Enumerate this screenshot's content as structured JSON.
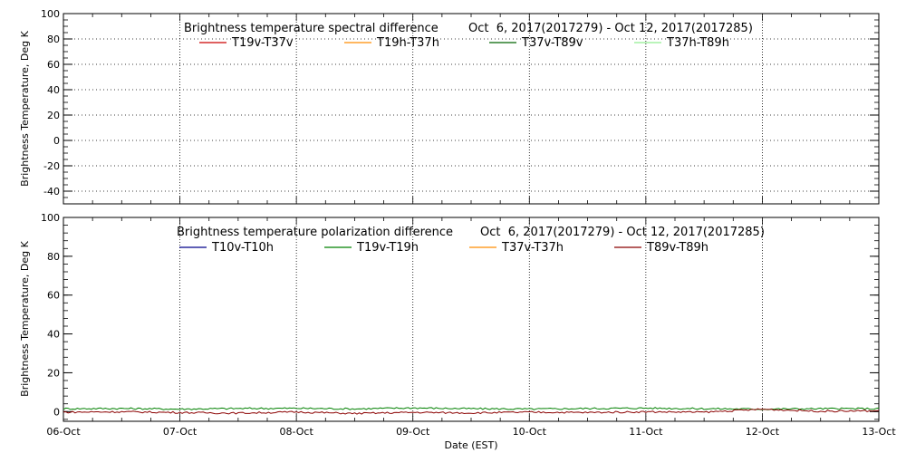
{
  "chart_data": [
    {
      "type": "line",
      "title": "Brightness temperature spectral difference",
      "date_range": "Oct  6, 2017(2017279) - Oct 12, 2017(2017285)",
      "ylabel": "Brightness Temperature, Deg K",
      "ylim": [
        -50,
        100
      ],
      "yticks": [
        -40,
        -20,
        0,
        20,
        40,
        60,
        80,
        100
      ],
      "xlim": [
        "2017-10-06",
        "2017-10-13"
      ],
      "grid": "dotted vertical at day boundaries and 06:00, dotted horizontal at y ticks",
      "legend_placement": "top",
      "series": [
        {
          "name": "T19v-T37v",
          "color": "#cc0000",
          "values": []
        },
        {
          "name": "T19h-T37h",
          "color": "#ff8c00",
          "values": []
        },
        {
          "name": "T37v-T89v",
          "color": "#006400",
          "values": []
        },
        {
          "name": "T37h-T89h",
          "color": "#90ee90",
          "values": []
        }
      ]
    },
    {
      "type": "line",
      "title": "Brightness temperature polarization difference",
      "date_range": "Oct  6, 2017(2017279) - Oct 12, 2017(2017285)",
      "ylabel": "Brightness Temperature, Deg K",
      "xlabel": "Date (EST)",
      "ylim": [
        -5,
        100
      ],
      "yticks": [
        0,
        20,
        40,
        60,
        80,
        100
      ],
      "xlim": [
        "2017-10-06",
        "2017-10-13"
      ],
      "xticks": [
        "06-Oct",
        "07-Oct",
        "08-Oct",
        "09-Oct",
        "10-Oct",
        "11-Oct",
        "12-Oct",
        "13-Oct"
      ],
      "grid": "dotted vertical at day boundaries",
      "legend_placement": "top",
      "series": [
        {
          "name": "T10v-T10h",
          "color": "#00008b",
          "values": []
        },
        {
          "name": "T19v-T19h",
          "color": "#008000",
          "x_days": [
            0,
            0.5,
            1,
            1.5,
            2,
            2.5,
            3,
            3.5,
            4,
            4.5,
            5,
            5.5,
            6,
            6.5,
            7
          ],
          "values": [
            1.5,
            1.6,
            1.3,
            1.6,
            1.7,
            1.4,
            1.9,
            1.5,
            1.3,
            1.6,
            1.8,
            1.5,
            1.3,
            1.5,
            1.5
          ]
        },
        {
          "name": "T37v-T37h",
          "color": "#ff8c00",
          "values": []
        },
        {
          "name": "T89v-T89h",
          "color": "#8b0000",
          "x_days": [
            0,
            0.5,
            1,
            1.5,
            2,
            2.5,
            3,
            3.5,
            4,
            4.5,
            5,
            5.5,
            6,
            6.5,
            7
          ],
          "values": [
            -0.3,
            -0.1,
            -0.5,
            -0.8,
            -0.2,
            -1.0,
            -0.4,
            -0.7,
            -0.3,
            -0.5,
            -0.1,
            -0.3,
            1.2,
            0.2,
            0.4
          ]
        }
      ]
    }
  ]
}
